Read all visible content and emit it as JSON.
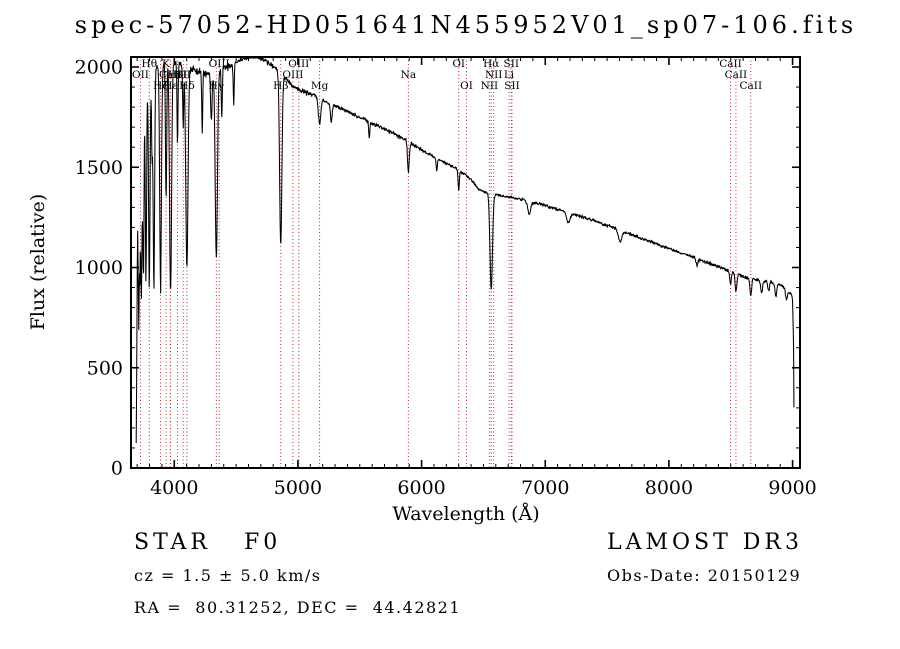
{
  "title": "spec-57052-HD051641N455952V01_sp07-106.fits",
  "axes": {
    "xlabel": "Wavelength (Å)",
    "ylabel": "Flux (relative)"
  },
  "footer": {
    "object_line_left": "STAR   F0",
    "survey": "LAMOST DR3",
    "velocity": "cz = 1.5 ± 5.0 km/s",
    "obs_date": "Obs-Date: 20150129",
    "coordinates": "RA =  80.31252, DEC =  44.42821"
  },
  "colors": {
    "marker_line": "#b03030",
    "marker_label": "#801818",
    "spectrum": "#000000",
    "frame": "#000000"
  },
  "chart_data": {
    "type": "line",
    "title": "spec-57052-HD051641N455952V01_sp07-106.fits",
    "xlabel": "Wavelength (Å)",
    "ylabel": "Flux (relative)",
    "xlim": [
      3650,
      9060
    ],
    "ylim": [
      0,
      2050
    ],
    "xticks": [
      4000,
      5000,
      6000,
      7000,
      8000,
      9000
    ],
    "yticks": [
      0,
      500,
      1000,
      1500,
      2000
    ],
    "x_minor_step": 100,
    "y_minor_step": 100,
    "grid": false,
    "continuum_points": [
      [
        3690,
        0
      ],
      [
        3694,
        300
      ],
      [
        3699,
        900
      ],
      [
        3705,
        1450
      ],
      [
        3715,
        1650
      ],
      [
        3730,
        1780
      ],
      [
        3760,
        1890
      ],
      [
        3800,
        1960
      ],
      [
        3860,
        2000
      ],
      [
        3950,
        2025
      ],
      [
        4050,
        2015
      ],
      [
        4150,
        1985
      ],
      [
        4250,
        1965
      ],
      [
        4350,
        1985
      ],
      [
        4450,
        2005
      ],
      [
        4550,
        2040
      ],
      [
        4650,
        2055
      ],
      [
        4720,
        2040
      ],
      [
        4800,
        2000
      ],
      [
        4861,
        1975
      ],
      [
        4950,
        1905
      ],
      [
        5050,
        1875
      ],
      [
        5150,
        1855
      ],
      [
        5250,
        1815
      ],
      [
        5350,
        1795
      ],
      [
        5450,
        1765
      ],
      [
        5550,
        1735
      ],
      [
        5650,
        1705
      ],
      [
        5750,
        1675
      ],
      [
        5850,
        1645
      ],
      [
        5950,
        1605
      ],
      [
        6050,
        1570
      ],
      [
        6150,
        1535
      ],
      [
        6250,
        1505
      ],
      [
        6350,
        1465
      ],
      [
        6420,
        1425
      ],
      [
        6460,
        1390
      ],
      [
        6520,
        1375
      ],
      [
        6620,
        1360
      ],
      [
        6720,
        1350
      ],
      [
        6820,
        1338
      ],
      [
        6920,
        1322
      ],
      [
        7020,
        1305
      ],
      [
        7120,
        1287
      ],
      [
        7220,
        1268
      ],
      [
        7320,
        1248
      ],
      [
        7420,
        1228
      ],
      [
        7520,
        1205
      ],
      [
        7620,
        1182
      ],
      [
        7720,
        1158
      ],
      [
        7820,
        1136
      ],
      [
        7920,
        1112
      ],
      [
        8020,
        1090
      ],
      [
        8120,
        1068
      ],
      [
        8220,
        1046
      ],
      [
        8320,
        1022
      ],
      [
        8420,
        1000
      ],
      [
        8520,
        976
      ],
      [
        8620,
        952
      ],
      [
        8720,
        938
      ],
      [
        8820,
        928
      ],
      [
        8880,
        918
      ],
      [
        8940,
        898
      ],
      [
        8990,
        865
      ],
      [
        9000,
        840
      ],
      [
        9008,
        600
      ],
      [
        9014,
        0
      ]
    ],
    "absorption_lines": [
      {
        "center": 3712,
        "depth": 0.5,
        "sigma": 5
      },
      {
        "center": 3722,
        "depth": 0.35,
        "sigma": 4
      },
      {
        "center": 3734,
        "depth": 0.55,
        "sigma": 5
      },
      {
        "center": 3750,
        "depth": 0.5,
        "sigma": 5
      },
      {
        "center": 3771,
        "depth": 0.52,
        "sigma": 5
      },
      {
        "center": 3798,
        "depth": 0.54,
        "sigma": 6
      },
      {
        "center": 3820,
        "depth": 0.2,
        "sigma": 4
      },
      {
        "center": 3835,
        "depth": 0.54,
        "sigma": 6
      },
      {
        "center": 3889,
        "depth": 0.55,
        "sigma": 7
      },
      {
        "center": 3934,
        "depth": 0.34,
        "sigma": 5
      },
      {
        "center": 3970,
        "depth": 0.57,
        "sigma": 8
      },
      {
        "center": 4026,
        "depth": 0.2,
        "sigma": 4
      },
      {
        "center": 4072,
        "depth": 0.15,
        "sigma": 4
      },
      {
        "center": 4102,
        "depth": 0.5,
        "sigma": 9
      },
      {
        "center": 4226,
        "depth": 0.15,
        "sigma": 4
      },
      {
        "center": 4300,
        "depth": 0.12,
        "sigma": 6
      },
      {
        "center": 4340,
        "depth": 0.48,
        "sigma": 9
      },
      {
        "center": 4384,
        "depth": 0.12,
        "sigma": 4
      },
      {
        "center": 4481,
        "depth": 0.1,
        "sigma": 4
      },
      {
        "center": 4861,
        "depth": 0.44,
        "sigma": 9
      },
      {
        "center": 5175,
        "depth": 0.07,
        "sigma": 10
      },
      {
        "center": 5270,
        "depth": 0.05,
        "sigma": 6
      },
      {
        "center": 5577,
        "depth": 0.05,
        "sigma": 4
      },
      {
        "center": 5893,
        "depth": 0.09,
        "sigma": 7
      },
      {
        "center": 6122,
        "depth": 0.04,
        "sigma": 5
      },
      {
        "center": 6300,
        "depth": 0.07,
        "sigma": 5
      },
      {
        "center": 6563,
        "depth": 0.35,
        "sigma": 10
      },
      {
        "center": 6870,
        "depth": 0.05,
        "sigma": 11
      },
      {
        "center": 7186,
        "depth": 0.04,
        "sigma": 14
      },
      {
        "center": 7605,
        "depth": 0.05,
        "sigma": 13
      },
      {
        "center": 8227,
        "depth": 0.03,
        "sigma": 8
      },
      {
        "center": 8498,
        "depth": 0.07,
        "sigma": 6
      },
      {
        "center": 8542,
        "depth": 0.09,
        "sigma": 7
      },
      {
        "center": 8662,
        "depth": 0.09,
        "sigma": 7
      },
      {
        "center": 8750,
        "depth": 0.07,
        "sigma": 7
      },
      {
        "center": 8806,
        "depth": 0.05,
        "sigma": 6
      },
      {
        "center": 8865,
        "depth": 0.07,
        "sigma": 7
      },
      {
        "center": 8950,
        "depth": 0.06,
        "sigma": 7
      }
    ],
    "noise_levels": [
      [
        3755,
        110
      ],
      [
        3805,
        70
      ],
      [
        3900,
        45
      ],
      [
        4000,
        32
      ],
      [
        4500,
        20
      ],
      [
        5200,
        15
      ],
      [
        6000,
        12
      ],
      [
        6800,
        9
      ],
      [
        9100,
        10
      ]
    ],
    "spectral_line_markers": [
      {
        "label": "Hθ",
        "wavelength": 3798,
        "row": 1
      },
      {
        "label": "K",
        "wavelength": 3934,
        "row": 1
      },
      {
        "label": "OIII",
        "wavelength": 4363,
        "row": 1
      },
      {
        "label": "OIII",
        "wavelength": 5007,
        "row": 1
      },
      {
        "label": "OI",
        "wavelength": 6300,
        "row": 1
      },
      {
        "label": "Hα",
        "wavelength": 6563,
        "row": 1
      },
      {
        "label": "SII",
        "wavelength": 6725,
        "row": 1
      },
      {
        "label": "CaII",
        "wavelength": 8498,
        "row": 1
      },
      {
        "label": "OII",
        "wavelength": 3727,
        "row": 2
      },
      {
        "label": "HeI",
        "wavelength": 4026,
        "row": 2
      },
      {
        "label": "CaII",
        "wavelength": 3968,
        "row": 2
      },
      {
        "label": "SII",
        "wavelength": 4072,
        "row": 2
      },
      {
        "label": "OIII",
        "wavelength": 4959,
        "row": 2
      },
      {
        "label": "Na",
        "wavelength": 5893,
        "row": 2
      },
      {
        "label": "NII",
        "wavelength": 6583,
        "row": 2
      },
      {
        "label": "Li",
        "wavelength": 6707,
        "row": 2
      },
      {
        "label": "CaII",
        "wavelength": 8542,
        "row": 2
      },
      {
        "label": "Hζ",
        "wavelength": 3889,
        "row": 3
      },
      {
        "label": "Hε",
        "wavelength": 3970,
        "row": 3
      },
      {
        "label": "Hδ",
        "wavelength": 4102,
        "row": 3
      },
      {
        "label": "Hγ",
        "wavelength": 4340,
        "row": 3
      },
      {
        "label": "Hβ",
        "wavelength": 4861,
        "row": 3
      },
      {
        "label": "Mg",
        "wavelength": 5175,
        "row": 3
      },
      {
        "label": "OI",
        "wavelength": 6363,
        "row": 3
      },
      {
        "label": "NII",
        "wavelength": 6548,
        "row": 3
      },
      {
        "label": "SII",
        "wavelength": 6731,
        "row": 3
      },
      {
        "label": "CaII",
        "wavelength": 8662,
        "row": 3
      }
    ]
  }
}
